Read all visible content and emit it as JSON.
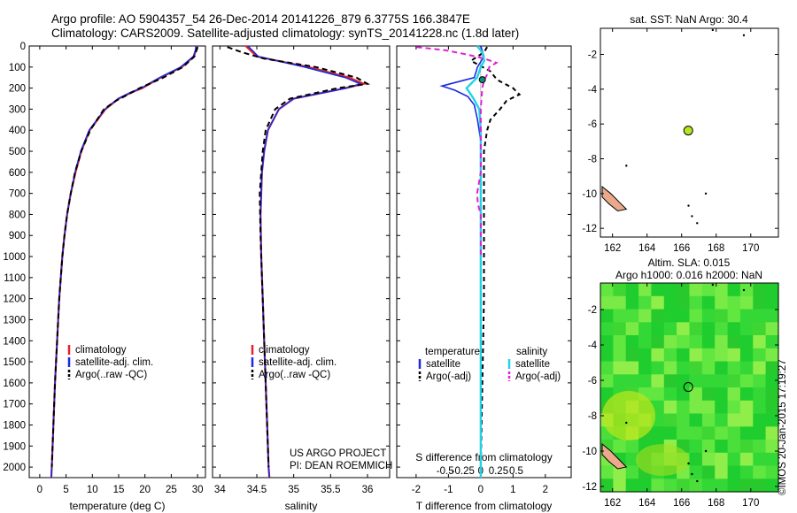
{
  "header": {
    "line1": "Argo profile: AO 5904357_54 26-Dec-2014 20141226_879 6.3775S 166.3847E",
    "line2": "Climatology: CARS2009. Satellite-adjusted climatology: synTS_20141228.nc (1.8d later)"
  },
  "footer_stamp": "©IMOS 20-Jan-2015 17:19:27",
  "colors": {
    "climatology": "#e8202a",
    "satellite": "#1a2be0",
    "argo": "#000000",
    "temp_sat": "#1a2be0",
    "sal_sat": "#22d3e8",
    "sal_argo": "#e020d8",
    "sst_dot": "#b5e61d",
    "land": "#e9a98a"
  },
  "chart_data": [
    {
      "type": "line",
      "id": "temperature",
      "xlabel": "temperature (deg C)",
      "xticks": [
        0,
        5,
        10,
        15,
        20,
        25,
        30
      ],
      "xlim": [
        -2,
        31.5
      ],
      "ylim": [
        2050,
        0
      ],
      "yticks": [
        0,
        100,
        200,
        300,
        400,
        500,
        600,
        700,
        800,
        900,
        1000,
        1100,
        1200,
        1300,
        1400,
        1500,
        1600,
        1700,
        1800,
        1900,
        2000
      ],
      "legend": [
        "climatology",
        "satellite-adj. clim.",
        "Argo(..raw -QC)"
      ],
      "series": [
        {
          "name": "climatology",
          "depth": [
            0,
            20,
            50,
            100,
            150,
            200,
            220,
            250,
            300,
            400,
            500,
            600,
            700,
            800,
            900,
            1000,
            1200,
            1400,
            1600,
            1800,
            2000,
            2050
          ],
          "values": [
            29.9,
            29.7,
            29.3,
            27.0,
            23.0,
            19.5,
            17.5,
            15.0,
            12.5,
            9.5,
            7.9,
            6.8,
            5.9,
            5.2,
            4.7,
            4.3,
            3.7,
            3.3,
            2.9,
            2.6,
            2.3,
            2.2
          ]
        },
        {
          "name": "satellite-adj. clim.",
          "depth": [
            0,
            20,
            50,
            100,
            150,
            200,
            220,
            250,
            300,
            400,
            500,
            600,
            700,
            800,
            900,
            1000,
            1200,
            1400,
            1600,
            1800,
            2000,
            2050
          ],
          "values": [
            29.7,
            29.6,
            29.2,
            26.8,
            22.8,
            19.3,
            17.3,
            14.9,
            12.4,
            9.4,
            7.8,
            6.7,
            5.9,
            5.2,
            4.7,
            4.3,
            3.7,
            3.3,
            2.9,
            2.6,
            2.3,
            2.2
          ]
        },
        {
          "name": "Argo(..raw -QC)",
          "depth": [
            5,
            20,
            50,
            100,
            150,
            200,
            230,
            260,
            300,
            400,
            500,
            600,
            700,
            800,
            900,
            1000,
            1200,
            1400,
            1600,
            1800,
            2000
          ],
          "values": [
            30.0,
            29.8,
            29.4,
            27.2,
            23.5,
            19.0,
            16.8,
            14.5,
            12.2,
            9.6,
            7.9,
            6.7,
            5.9,
            5.2,
            4.7,
            4.3,
            3.7,
            3.3,
            2.9,
            2.6,
            2.3
          ]
        }
      ]
    },
    {
      "type": "line",
      "id": "salinity",
      "xlabel": "salinity",
      "xticks": [
        34,
        34.5,
        35,
        35.5,
        36
      ],
      "xlim": [
        33.9,
        36.3
      ],
      "ylim": [
        2050,
        0
      ],
      "legend": [
        "climatology",
        "satellite-adj. clim.",
        "Argo(..raw -QC)"
      ],
      "annotations": [
        "US ARGO PROJECT",
        "PI: DEAN ROEMMICH"
      ],
      "series": [
        {
          "name": "climatology",
          "depth": [
            0,
            50,
            100,
            150,
            180,
            200,
            250,
            300,
            400,
            500,
            600,
            800,
            1000,
            1200,
            1400,
            1600,
            1800,
            2000,
            2050
          ],
          "values": [
            34.35,
            34.5,
            35.2,
            35.75,
            35.95,
            35.7,
            35.0,
            34.8,
            34.65,
            34.6,
            34.57,
            34.55,
            34.56,
            34.58,
            34.6,
            34.62,
            34.64,
            34.66,
            34.67
          ]
        },
        {
          "name": "satellite-adj. clim.",
          "depth": [
            0,
            50,
            100,
            150,
            180,
            200,
            250,
            300,
            400,
            500,
            600,
            800,
            1000,
            1200,
            1400,
            1600,
            1800,
            2000,
            2050
          ],
          "values": [
            34.38,
            34.52,
            35.15,
            35.7,
            35.9,
            35.72,
            35.0,
            34.8,
            34.65,
            34.6,
            34.57,
            34.55,
            34.56,
            34.58,
            34.6,
            34.62,
            34.64,
            34.66,
            34.67
          ]
        },
        {
          "name": "Argo(..raw -QC)",
          "depth": [
            5,
            30,
            60,
            100,
            150,
            180,
            200,
            250,
            300,
            400,
            500,
            700,
            900,
            1100,
            1300,
            1500,
            1700,
            1900,
            2000
          ],
          "values": [
            34.1,
            34.3,
            34.6,
            35.3,
            35.85,
            36.0,
            35.6,
            34.95,
            34.75,
            34.62,
            34.58,
            34.54,
            34.55,
            34.57,
            34.59,
            34.61,
            34.63,
            34.65,
            34.66
          ]
        }
      ]
    },
    {
      "type": "line",
      "id": "differences",
      "xlabel": "T difference from climatology",
      "xticks": [
        -2,
        -1,
        0,
        1,
        2
      ],
      "xlim": [
        -2.6,
        2.8
      ],
      "xlabel2": "S difference from climatology",
      "xticks2": [
        -0.5,
        -0.25,
        0,
        0.25,
        0.5
      ],
      "ylim": [
        2050,
        0
      ],
      "legend": {
        "temperature": [
          "temperature",
          "satellite",
          "Argo(-adj)"
        ],
        "salinity": [
          "salinity",
          "satellite",
          "Argo(-adj)"
        ]
      },
      "series": [
        {
          "name": "temperature satellite",
          "depth": [
            0,
            50,
            100,
            150,
            190,
            210,
            240,
            280,
            350,
            450,
            600,
            800,
            1000,
            1400,
            1800,
            2050
          ],
          "values": [
            0.0,
            0.1,
            -0.1,
            -0.2,
            -1.2,
            -0.8,
            -0.4,
            -0.2,
            -0.1,
            0.0,
            0.0,
            0.0,
            0.0,
            0.0,
            0.0,
            0.0
          ]
        },
        {
          "name": "temperature Argo(-adj)",
          "depth": [
            5,
            30,
            70,
            120,
            160,
            200,
            230,
            260,
            300,
            350,
            400,
            500,
            600,
            800,
            1000,
            1200,
            1600,
            2000
          ],
          "values": [
            0.2,
            0.1,
            -0.3,
            0.3,
            0.5,
            1.0,
            1.2,
            0.8,
            0.6,
            0.3,
            0.2,
            0.1,
            0.1,
            0.1,
            0.1,
            0.1,
            0.05,
            0.0
          ]
        },
        {
          "name": "salinity satellite",
          "depth": [
            0,
            30,
            70,
            100,
            150,
            200,
            250,
            300,
            400,
            600,
            1000,
            1500,
            2050
          ],
          "values": [
            -0.05,
            0.02,
            0.05,
            0.0,
            -0.05,
            -0.2,
            -0.1,
            -0.02,
            0.0,
            0.0,
            0.0,
            0.0,
            0.0
          ]
        },
        {
          "name": "salinity Argo(-adj)",
          "depth": [
            5,
            20,
            40,
            60,
            80,
            100,
            130,
            160,
            200,
            300,
            400,
            600,
            700,
            750,
            800,
            1000
          ],
          "values": [
            -0.9,
            -0.5,
            -0.2,
            0.05,
            0.22,
            0.12,
            0.1,
            0.05,
            0.02,
            0.0,
            0.0,
            0.0,
            -0.05,
            -0.04,
            0.0,
            0.0
          ]
        }
      ]
    },
    {
      "type": "scatter",
      "id": "sst-map",
      "title": "sat. SST: NaN Argo: 30.4",
      "xticks": [
        162,
        164,
        166,
        168,
        170
      ],
      "yticks": [
        -2,
        -4,
        -6,
        -8,
        -10,
        -12
      ],
      "xlim": [
        161.3,
        171.6
      ],
      "ylim": [
        -12.5,
        -0.5
      ],
      "float_position": {
        "lon": 166.3847,
        "lat": -6.3775
      }
    },
    {
      "type": "heatmap",
      "id": "sla-map",
      "title_line1": "Altim. SLA: 0.015",
      "title_line2": "Argo h1000: 0.016 h2000: NaN",
      "xticks": [
        162,
        164,
        166,
        168,
        170
      ],
      "yticks": [
        -2,
        -4,
        -6,
        -8,
        -10,
        -12
      ],
      "xlim": [
        161.3,
        171.6
      ],
      "ylim": [
        -12.3,
        -0.5
      ],
      "float_position": {
        "lon": 166.3847,
        "lat": -6.3775
      }
    }
  ]
}
